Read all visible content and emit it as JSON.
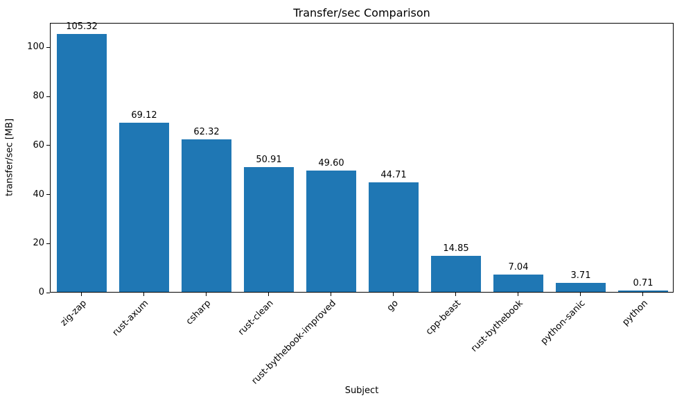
{
  "chart_data": {
    "type": "bar",
    "title": "Transfer/sec Comparison",
    "xlabel": "Subject",
    "ylabel": "transfer/sec [MB]",
    "categories": [
      "zig-zap",
      "rust-axum",
      "csharp",
      "rust-clean",
      "rust-bythebook-improved",
      "go",
      "cpp-beast",
      "rust-bythebook",
      "python-sanic",
      "python"
    ],
    "values": [
      105.32,
      69.12,
      62.32,
      50.91,
      49.6,
      44.71,
      14.85,
      7.04,
      3.71,
      0.71
    ],
    "value_labels": [
      "105.32",
      "69.12",
      "62.32",
      "50.91",
      "49.60",
      "44.71",
      "14.85",
      "7.04",
      "3.71",
      "0.71"
    ],
    "yticks": [
      0,
      20,
      40,
      60,
      80,
      100
    ],
    "ylim": [
      0,
      110
    ],
    "bar_color": "#1f77b4",
    "grid": false,
    "legend_position": null
  }
}
